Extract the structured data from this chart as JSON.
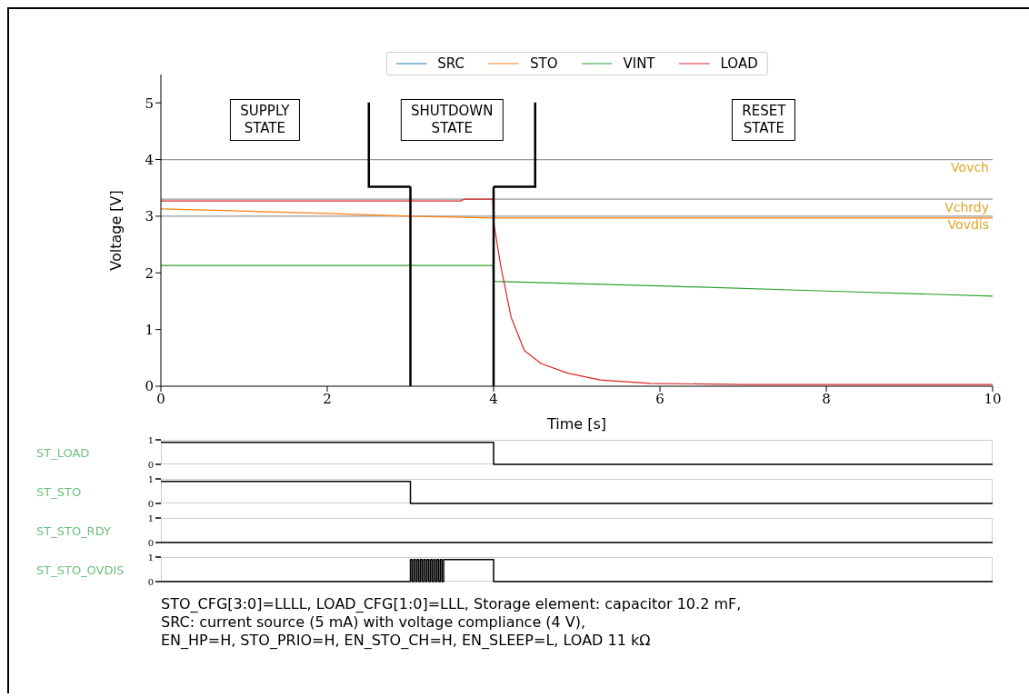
{
  "chart_data": [
    {
      "type": "line",
      "xlabel": "Time [s]",
      "ylabel": "Voltage [V]",
      "xlim": [
        0,
        10
      ],
      "ylim": [
        0,
        5.5
      ],
      "xticks": [
        0,
        2,
        4,
        6,
        8,
        10
      ],
      "yticks": [
        0,
        1,
        2,
        3,
        4,
        5
      ],
      "legend": "top",
      "series": [
        {
          "name": "SRC",
          "color": "#1f77b4"
        },
        {
          "name": "STO",
          "color": "#ff7f0e",
          "x": [
            0,
            1,
            2,
            3,
            4,
            5,
            6,
            8,
            10
          ],
          "values": [
            3.13,
            3.09,
            3.05,
            3.0,
            2.97,
            2.97,
            2.97,
            2.97,
            2.97
          ]
        },
        {
          "name": "VINT",
          "color": "#2ca02c",
          "x": [
            0,
            1,
            2,
            3,
            3.99,
            4.0,
            6,
            8,
            10
          ],
          "values": [
            2.13,
            2.13,
            2.13,
            2.13,
            2.13,
            1.85,
            1.77,
            1.68,
            1.59
          ]
        },
        {
          "name": "LOAD",
          "color": "#d62728",
          "x": [
            0,
            1,
            2,
            3,
            3.6,
            3.65,
            3.99,
            4.0,
            4.09,
            4.21,
            4.37,
            4.57,
            4.89,
            5.28,
            5.88,
            7,
            8,
            10
          ],
          "values": [
            3.27,
            3.27,
            3.27,
            3.27,
            3.27,
            3.3,
            3.3,
            2.9,
            2.09,
            1.22,
            0.63,
            0.4,
            0.23,
            0.11,
            0.05,
            0.03,
            0.03,
            0.03
          ]
        }
      ],
      "ref_lines": [
        {
          "axis": "y",
          "value": 4,
          "label": "Vovch",
          "color": "#999999"
        },
        {
          "axis": "y",
          "value": 3.3,
          "label": "Vchrdy",
          "color": "#999999"
        },
        {
          "axis": "y",
          "value": 3,
          "label": "Vovdis",
          "color": "#999999"
        },
        {
          "axis": "x",
          "value": 3,
          "color": "#000000"
        },
        {
          "axis": "x",
          "value": 4,
          "color": "#000000"
        }
      ],
      "annotations": [
        "SUPPLY STATE",
        "SHUTDOWN STATE",
        "RESET STATE",
        "STO_CFG[3:0]=LLLL, LOAD_CFG[1:0]=LLL, Storage element: capacitor 10.2 mF,",
        "SRC: current source (5 mA) with voltage compliance (4 V),",
        "EN_HP=H, STO_PRIO=H, EN_STO_CH=H, EN_SLEEP=L, LOAD 11 kΩ"
      ]
    },
    {
      "type": "step",
      "ylabel": "ST_LOAD",
      "xlim": [
        0,
        10
      ],
      "ylim": [
        0,
        1
      ],
      "yticks": [
        0,
        1
      ],
      "tick_labels": "y",
      "series": [
        {
          "color": "#000000",
          "x": [
            0,
            3.99,
            4,
            10
          ],
          "values": [
            0.9,
            0.9,
            0,
            0
          ]
        }
      ]
    },
    {
      "type": "step",
      "ylabel": "ST_STO",
      "xlim": [
        0,
        10
      ],
      "ylim": [
        0,
        1
      ],
      "yticks": [
        0,
        1
      ],
      "tick_labels": "y",
      "series": [
        {
          "color": "#000000",
          "x": [
            0,
            2.99,
            3,
            10
          ],
          "values": [
            0.9,
            0.9,
            0,
            0
          ]
        }
      ]
    },
    {
      "type": "step",
      "ylabel": "ST_STO_RDY",
      "xlim": [
        0,
        10
      ],
      "ylim": [
        0,
        1
      ],
      "yticks": [
        0,
        1
      ],
      "tick_labels": "y",
      "series": [
        {
          "color": "#000000",
          "x": [
            0,
            10
          ],
          "values": [
            0,
            0
          ]
        }
      ]
    },
    {
      "type": "step",
      "ylabel": "ST_STO_OVDIS",
      "xlim": [
        0,
        10
      ],
      "ylim": [
        0,
        1
      ],
      "yticks": [
        0,
        1
      ],
      "tick_labels": "y",
      "series": [
        {
          "color": "#000000",
          "x": [
            0,
            3,
            3.02,
            3.04,
            3.06,
            3.08,
            3.1,
            3.12,
            3.14,
            3.16,
            3.18,
            3.2,
            3.22,
            3.24,
            3.26,
            3.28,
            3.3,
            3.32,
            3.34,
            3.36,
            3.38,
            3.4,
            4,
            10
          ],
          "values": [
            0,
            0.9,
            0,
            0.9,
            0,
            0.9,
            0,
            0.9,
            0,
            0.9,
            0,
            0.9,
            0,
            0.9,
            0,
            0.9,
            0,
            0.9,
            0,
            0.9,
            0,
            0.9,
            0,
            0
          ]
        }
      ]
    }
  ]
}
